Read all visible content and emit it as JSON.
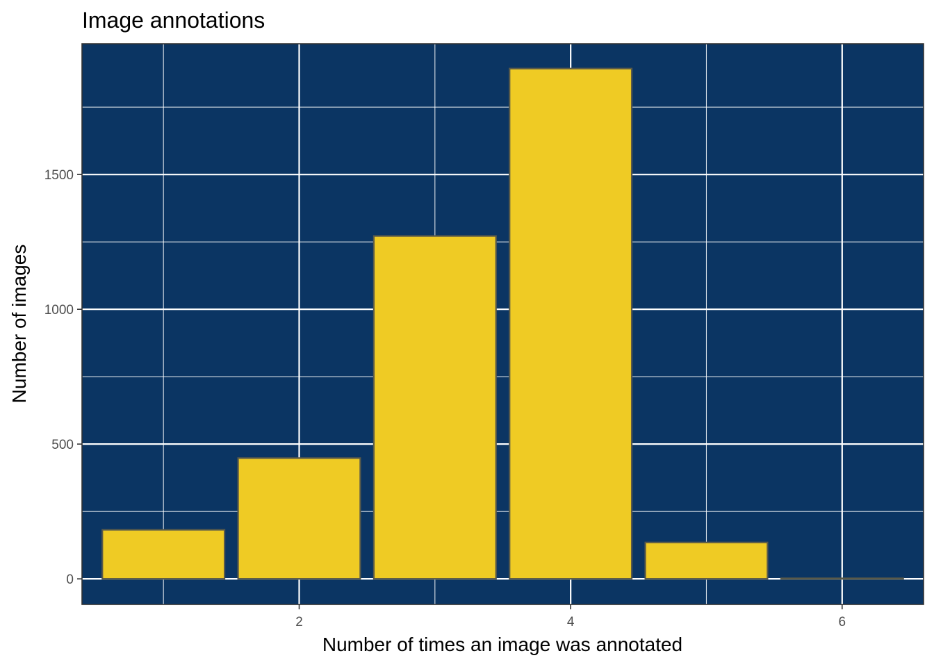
{
  "chart_data": {
    "type": "bar",
    "title": "Image annotations",
    "xlabel": "Number of times an image was annotated",
    "ylabel": "Number of images",
    "x": [
      1,
      2,
      3,
      4,
      5,
      6
    ],
    "values": [
      182,
      448,
      1272,
      1893,
      135,
      2
    ],
    "xlim": [
      0.4,
      6.6
    ],
    "ylim": [
      -95,
      1985
    ],
    "x_ticks": [
      2,
      4,
      6
    ],
    "x_tick_labels": [
      "2",
      "4",
      "6"
    ],
    "x_minor_ticks": [
      1,
      3,
      5
    ],
    "y_ticks": [
      0,
      500,
      1000,
      1500
    ],
    "y_tick_labels": [
      "0",
      "500",
      "1000",
      "1500"
    ],
    "y_minor_ticks": [
      250,
      750,
      1250,
      1750
    ],
    "grid": true,
    "legend": "none",
    "colors": {
      "panel_background": "#0b3563",
      "grid_line": "#ffffff",
      "bar_fill": "#efcb24",
      "bar_outline": "#5a5a4a",
      "tick_text": "#4d4d4d",
      "text": "#000000"
    }
  }
}
